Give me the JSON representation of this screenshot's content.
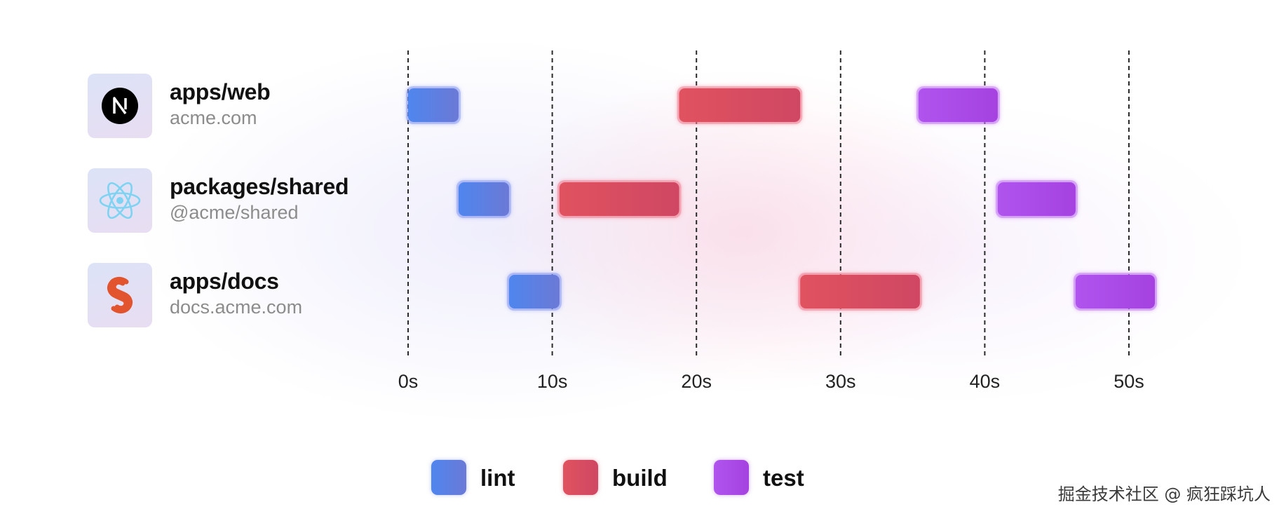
{
  "packages": [
    {
      "name": "apps/web",
      "subtitle": "acme.com",
      "icon": "nextjs-logo-icon"
    },
    {
      "name": "packages/shared",
      "subtitle": "@acme/shared",
      "icon": "react-logo-icon"
    },
    {
      "name": "apps/docs",
      "subtitle": "docs.acme.com",
      "icon": "svelte-logo-icon"
    }
  ],
  "legend": [
    {
      "label": "lint",
      "color": "#5b82e6"
    },
    {
      "label": "build",
      "color": "#d94e62"
    },
    {
      "label": "test",
      "color": "#a54ae4"
    }
  ],
  "watermark": "掘金技术社区 @ 疯狂踩坑人",
  "chart_data": {
    "type": "gantt",
    "x_ticks": [
      "0s",
      "10s",
      "20s",
      "30s",
      "40s",
      "50s"
    ],
    "xlim": [
      0,
      50
    ],
    "grid": "vertical-dashed",
    "legend_position": "bottom-center",
    "rows": [
      "apps/web",
      "packages/shared",
      "apps/docs"
    ],
    "tasks": [
      {
        "row": "apps/web",
        "task": "lint",
        "start": 0,
        "end": 3.5
      },
      {
        "row": "apps/web",
        "task": "build",
        "start": 18.8,
        "end": 27.2
      },
      {
        "row": "apps/web",
        "task": "test",
        "start": 35.4,
        "end": 40.9
      },
      {
        "row": "packages/shared",
        "task": "lint",
        "start": 3.5,
        "end": 7.0
      },
      {
        "row": "packages/shared",
        "task": "build",
        "start": 10.5,
        "end": 18.8
      },
      {
        "row": "packages/shared",
        "task": "test",
        "start": 40.9,
        "end": 46.3
      },
      {
        "row": "apps/docs",
        "task": "lint",
        "start": 7.0,
        "end": 10.5
      },
      {
        "row": "apps/docs",
        "task": "build",
        "start": 27.2,
        "end": 35.5
      },
      {
        "row": "apps/docs",
        "task": "test",
        "start": 46.3,
        "end": 51.8
      }
    ]
  }
}
